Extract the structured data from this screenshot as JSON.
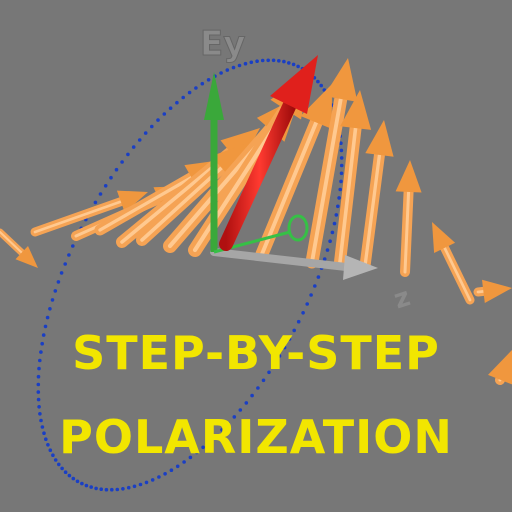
{
  "scene": {
    "background": "#777777",
    "arrow_color": "#f5a354",
    "e_vector_color": "#e0201c",
    "ey_axis_color": "#3aa83a",
    "z_axis_color": "#9a9a9a",
    "trace_color": "#1a3fc4"
  },
  "axes": {
    "ey_label": "Ey",
    "z_label": "z"
  },
  "title": {
    "line1": "STEP-BY-STEP",
    "line2": "POLARIZATION",
    "color": "#f2e600"
  }
}
